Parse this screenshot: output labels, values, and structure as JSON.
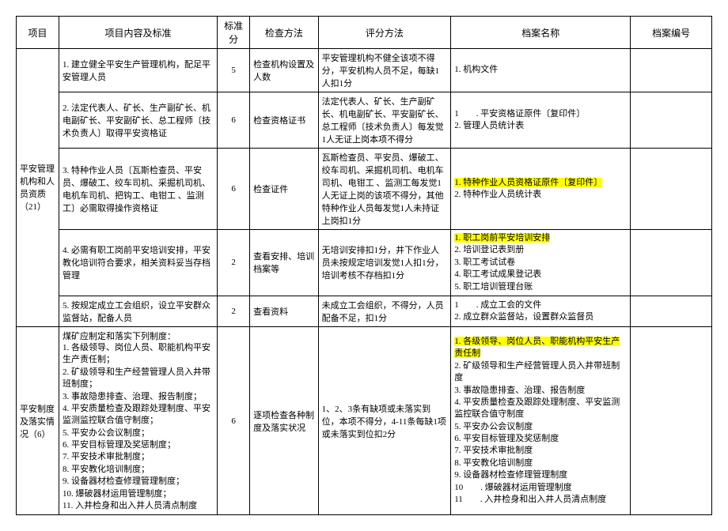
{
  "headers": {
    "c1": "项目",
    "c2": "项目内容及标准",
    "c3": "标准分",
    "c4": "检查方法",
    "c5": "评分方法",
    "c6": "档案名称",
    "c7": "档案编号"
  },
  "section1": {
    "title": "平安管理机构和人员资质（21）",
    "rows": [
      {
        "content": "1. 建立健全平安生产管理机构，配足平安管理人员",
        "score": "5",
        "method": "检查机构设置及人数",
        "eval": "平安管理机构不健全该项不得分，平安机构人员不足，每缺1人扣1分",
        "archive": [
          {
            "text": "1. 机构文件",
            "hl": false
          }
        ]
      },
      {
        "content": "2. 法定代表人、矿长、生产副矿长、机电副矿长、平安副矿长、总工程师〔技术负责人〕取得平安资格证",
        "score": "6",
        "method": "检查资格证书",
        "eval": "法定代表人、矿长、生产副矿长、机电副矿长、平安副矿长、总工程师〔技术负责人〕每发觉1人无证上岗本项不得分",
        "archive": [
          {
            "text": "1　　. 平安资格证原件〔复印件〕",
            "hl": false
          },
          {
            "text": "2. 管理人员统计表",
            "hl": false
          }
        ]
      },
      {
        "content": "3. 特种作业人员〔瓦斯检查员、平安员、爆破工、绞车司机、采掘机司机、电机车司机、把钩工、电钳工 、监测工〕必需取得操作资格证",
        "score": "6",
        "method": "检查证件",
        "eval": "瓦斯检查员、平安员、爆破工、绞车司机、采掘机司机、电机车司机、电钳工 、监测工每发觉1人无证上岗的该项不得分，其他特种作业人员每发觉1人未持证上岗扣1分",
        "archive": [
          {
            "text": "1. 特种作业人员资格证原件〔复印件〕",
            "hl": true
          },
          {
            "text": "2. 特种作业人员统计表",
            "hl": false
          }
        ]
      },
      {
        "content": "4. 必需有职工岗前平安培训安排，平安教化培训符合要求，相关资料妥当存档管理",
        "score": "2",
        "method": "查看安排、培训档案等",
        "eval": "无培训安排扣1分，井下作业人员未按规定培训发觉1人扣1分，培训考核不存档扣1分",
        "archive": [
          {
            "text": "1. 职工岗前平安培训安排",
            "hl": true
          },
          {
            "text": "2. 培训登记表到册",
            "hl": false
          },
          {
            "text": "3. 职工考试试卷",
            "hl": false
          },
          {
            "text": "4. 职工考试成果登记表",
            "hl": false
          },
          {
            "text": "5. 职工培训管理台账",
            "hl": false
          }
        ]
      },
      {
        "content": "5. 按规定成立工会组织，设立平安群众监督站，配备人员",
        "score": "2",
        "method": "查看资料",
        "eval": "未成立工会组织，不得分，人员配备不足，扣1分",
        "archive": [
          {
            "text": "1　　. 成立工会的文件",
            "hl": false
          },
          {
            "text": "2. 成立群众监督站，设置群众监督员",
            "hl": false
          }
        ]
      }
    ]
  },
  "section2": {
    "title": "平安制度及落实情况（6）",
    "rows": [
      {
        "content_header": "煤矿应制定和落实下列制度：",
        "content_items": [
          "1. 各级领导、岗位人员、职能机构平安生产责任制；",
          "2. 矿级领导和生产经营管理人员入井带班制度；",
          "3. 事故隐患排查、治理、报告制度；",
          "4. 平安质量检查及跟踪处理制度、平安监测监控联合值守制度；",
          "5. 平安办公会议制度；",
          "6. 平安目标管理及奖惩制度；",
          "7. 平安技术审批制度；",
          "8. 平安教化培训制度；",
          "9. 设备器材检查修理管理制度；",
          "10. 爆破器材运用管理制度；",
          "11. 入井检身和出入井人员清点制度",
          ""
        ],
        "score": "6",
        "method": "逐项检查各种制度及落实状况",
        "eval": "1、2、3条有缺项或未落实到位，本项不得分，4-11条每缺1项或未落实到位扣2分",
        "archive": [
          {
            "text": "1. 各级领导、岗位人员、职能机构平安生产责任制",
            "hl": true
          },
          {
            "text": "2. 矿级领导和生产经营管理人员入井带班制度",
            "hl": false
          },
          {
            "text": "3. 事故隐患排查、治理、报告制度",
            "hl": false
          },
          {
            "text": "4. 平安质量检查及跟踪处理制度、平安监测监控联合值守制度",
            "hl": false
          },
          {
            "text": "5. 平安办公会议制度",
            "hl": false
          },
          {
            "text": "6. 平安目标管理及奖惩制度",
            "hl": false
          },
          {
            "text": "7. 平安技术审批制度",
            "hl": false
          },
          {
            "text": "8. 平安教化培训制度",
            "hl": false
          },
          {
            "text": "9. 设备器材检查修理管理制度",
            "hl": false
          },
          {
            "text": "10　　. 爆破器材运用管理制度",
            "hl": false
          },
          {
            "text": "11　　. 入井检身和出入井人员清点制度",
            "hl": false
          }
        ]
      }
    ]
  }
}
